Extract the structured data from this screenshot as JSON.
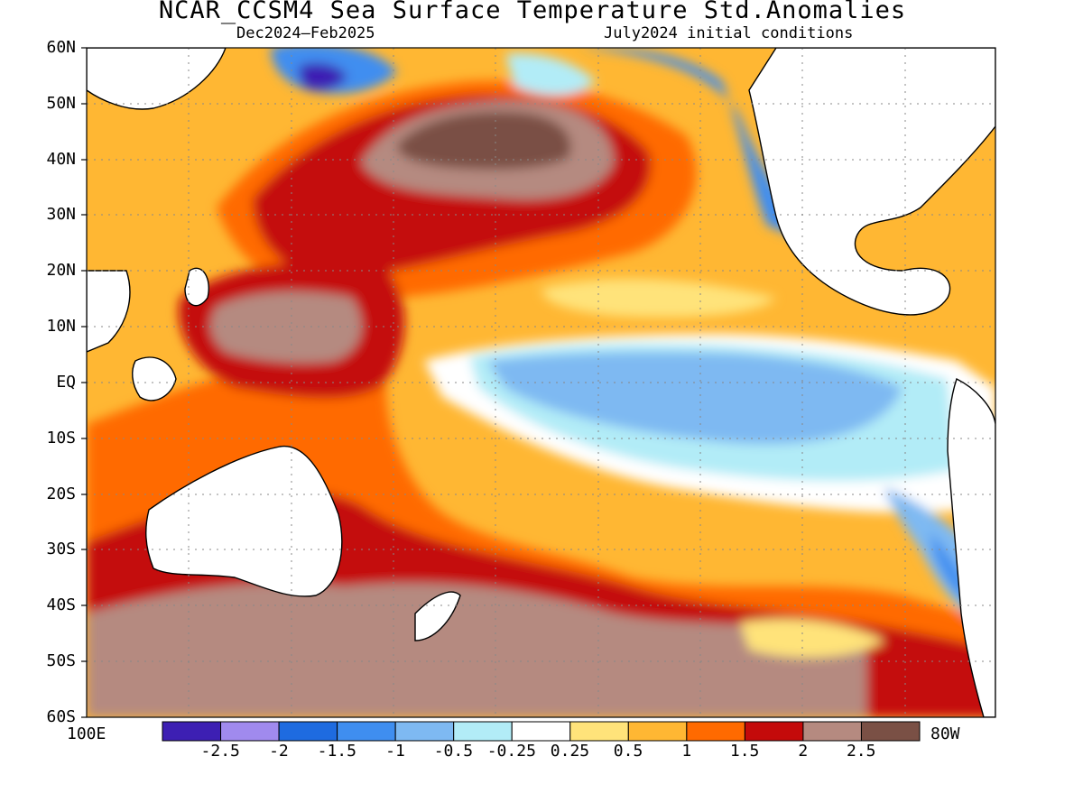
{
  "title": "NCAR_CCSM4 Sea Surface Temperature Std.Anomalies",
  "subtitle_left": "Dec2024–Feb2025",
  "subtitle_right": "July2024 initial conditions",
  "lat_ticks": [
    "60N",
    "50N",
    "40N",
    "30N",
    "20N",
    "10N",
    "EQ",
    "10S",
    "20S",
    "30S",
    "40S",
    "50S",
    "60S"
  ],
  "lon_left": "100E",
  "lon_right": "80W",
  "colorbar": {
    "colors": [
      "#3d1fb3",
      "#a08aee",
      "#1e6be0",
      "#3f8ef0",
      "#7eb9f2",
      "#b2ecf7",
      "#ffffff",
      "#ffe37a",
      "#ffb733",
      "#ff6a00",
      "#c40a0a",
      "#b58a80",
      "#7a5045"
    ],
    "labels": [
      "-2.5",
      "-2",
      "-1.5",
      "-1",
      "-0.5",
      "-0.25",
      "0.25",
      "0.5",
      "1",
      "1.5",
      "2",
      "2.5"
    ]
  }
}
